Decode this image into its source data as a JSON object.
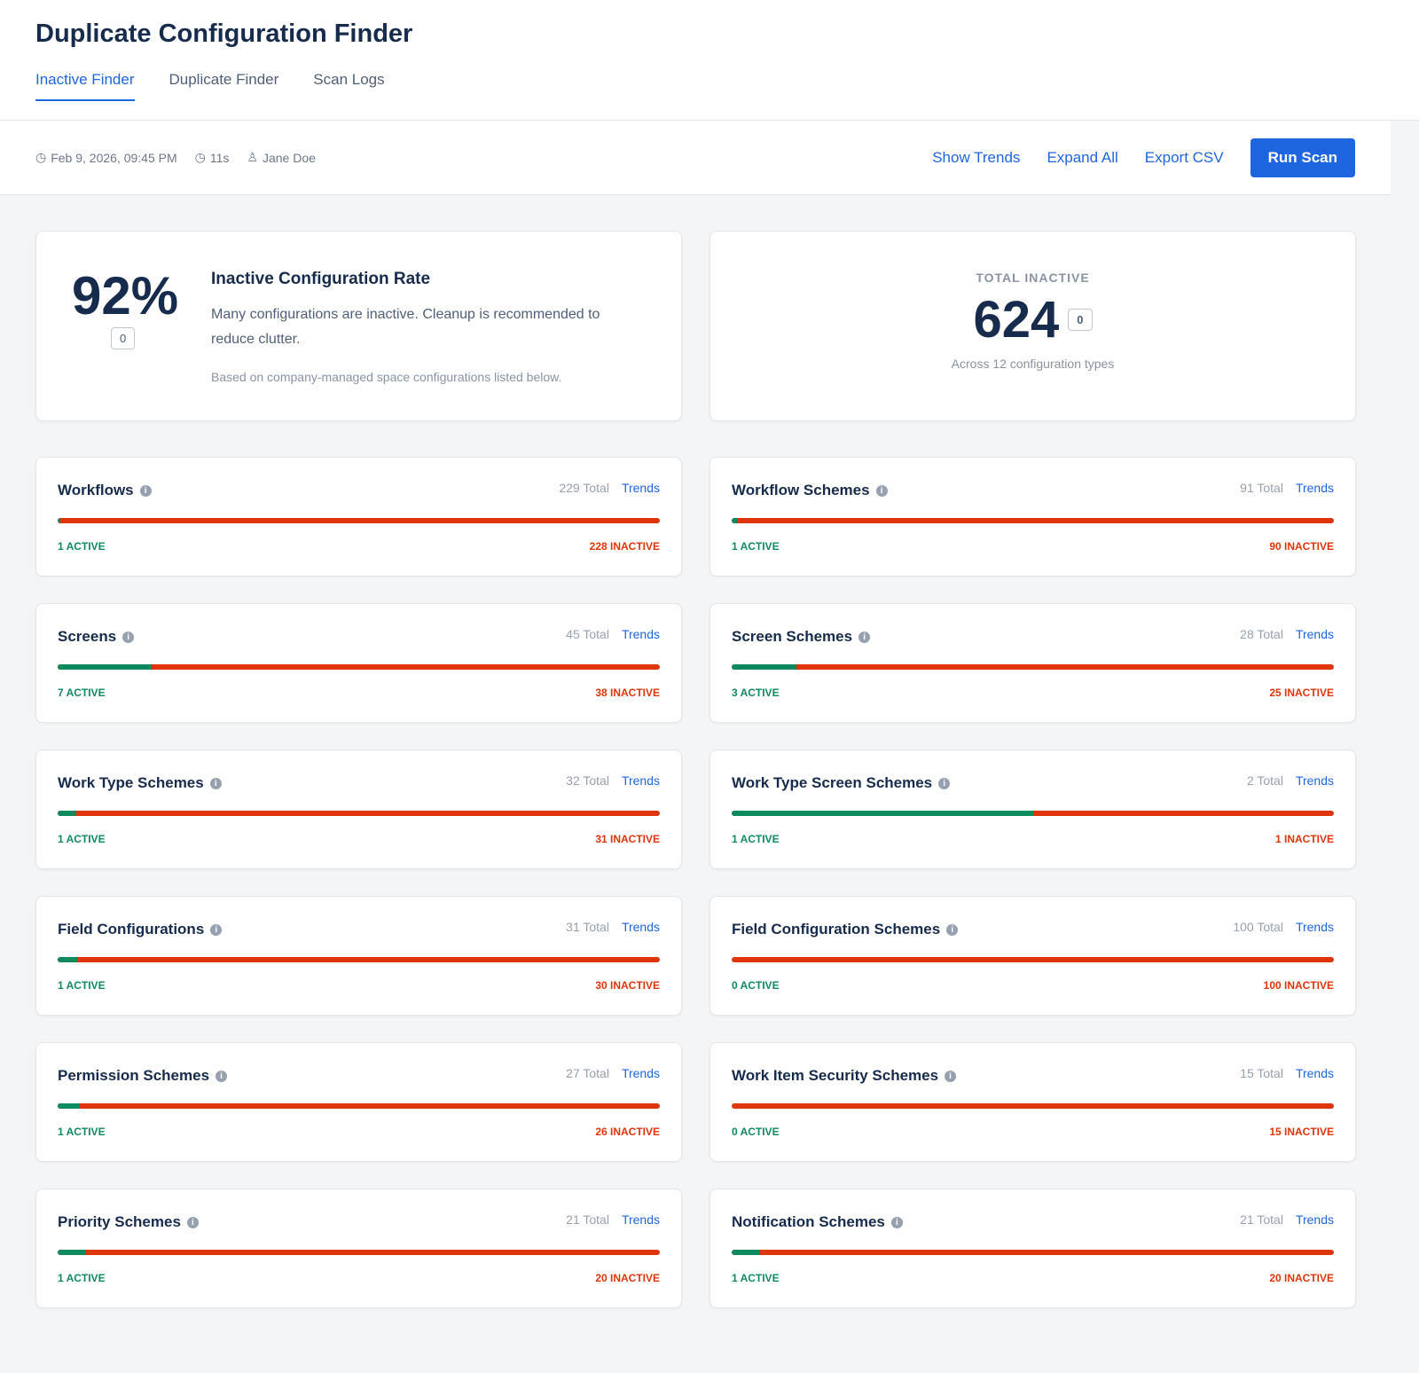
{
  "header": {
    "title": "Duplicate Configuration Finder",
    "tabs": [
      "Inactive Finder",
      "Duplicate Finder",
      "Scan Logs"
    ],
    "active_tab": 0
  },
  "toolbar": {
    "timestamp": "Feb 9, 2026, 09:45 PM",
    "duration": "11s",
    "user": "Jane Doe",
    "show_trends": "Show Trends",
    "expand_all": "Expand All",
    "export_csv": "Export CSV",
    "run_scan": "Run Scan"
  },
  "summary": {
    "rate": "92%",
    "rate_badge": "0",
    "title": "Inactive Configuration Rate",
    "description": "Many configurations are inactive. Cleanup is recommended to reduce clutter.",
    "note": "Based on company-managed space configurations listed below.",
    "total_label": "TOTAL INACTIVE",
    "total": "624",
    "total_badge": "0",
    "total_sub": "Across 12 configuration types"
  },
  "configs": [
    {
      "name": "Workflows",
      "total": "229 Total",
      "active": 1,
      "inactive": 228,
      "active_label": "1 ACTIVE",
      "inactive_label": "228 INACTIVE"
    },
    {
      "name": "Workflow Schemes",
      "total": "91 Total",
      "active": 1,
      "inactive": 90,
      "active_label": "1 ACTIVE",
      "inactive_label": "90 INACTIVE"
    },
    {
      "name": "Screens",
      "total": "45 Total",
      "active": 7,
      "inactive": 38,
      "active_label": "7 ACTIVE",
      "inactive_label": "38 INACTIVE"
    },
    {
      "name": "Screen Schemes",
      "total": "28 Total",
      "active": 3,
      "inactive": 25,
      "active_label": "3 ACTIVE",
      "inactive_label": "25 INACTIVE"
    },
    {
      "name": "Work Type Schemes",
      "total": "32 Total",
      "active": 1,
      "inactive": 31,
      "active_label": "1 ACTIVE",
      "inactive_label": "31 INACTIVE"
    },
    {
      "name": "Work Type Screen Schemes",
      "total": "2 Total",
      "active": 1,
      "inactive": 1,
      "active_label": "1 ACTIVE",
      "inactive_label": "1 INACTIVE"
    },
    {
      "name": "Field Configurations",
      "total": "31 Total",
      "active": 1,
      "inactive": 30,
      "active_label": "1 ACTIVE",
      "inactive_label": "30 INACTIVE"
    },
    {
      "name": "Field Configuration Schemes",
      "total": "100 Total",
      "active": 0,
      "inactive": 100,
      "active_label": "0 ACTIVE",
      "inactive_label": "100 INACTIVE"
    },
    {
      "name": "Permission Schemes",
      "total": "27 Total",
      "active": 1,
      "inactive": 26,
      "active_label": "1 ACTIVE",
      "inactive_label": "26 INACTIVE"
    },
    {
      "name": "Work Item Security Schemes",
      "total": "15 Total",
      "active": 0,
      "inactive": 15,
      "active_label": "0 ACTIVE",
      "inactive_label": "15 INACTIVE"
    },
    {
      "name": "Priority Schemes",
      "total": "21 Total",
      "active": 1,
      "inactive": 20,
      "active_label": "1 ACTIVE",
      "inactive_label": "20 INACTIVE"
    },
    {
      "name": "Notification Schemes",
      "total": "21 Total",
      "active": 1,
      "inactive": 20,
      "active_label": "1 ACTIVE",
      "inactive_label": "20 INACTIVE"
    }
  ],
  "trends_label": "Trends",
  "colors": {
    "accent": "#1d66e0",
    "active": "#0f8a5f",
    "inactive": "#de350b"
  }
}
